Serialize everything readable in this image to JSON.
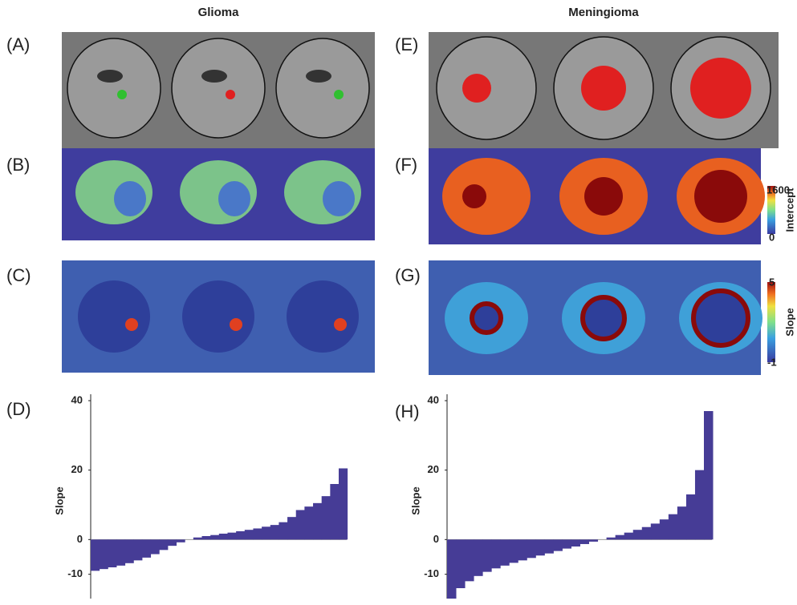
{
  "figure": {
    "columns": [
      "Glioma",
      "Meningioma"
    ],
    "panels": [
      "(A)",
      "(B)",
      "(C)",
      "(D)",
      "(E)",
      "(F)",
      "(G)",
      "(H)"
    ],
    "colorbars": [
      {
        "label": "Intercept",
        "max": "1600",
        "min": "0"
      },
      {
        "label": "Slope",
        "max": "5",
        "min": "-1"
      }
    ]
  },
  "chart_data": [
    {
      "type": "area",
      "ylabel": "Slope",
      "color": "#463c96",
      "x": [
        1,
        2,
        3,
        4,
        5,
        6,
        7,
        8,
        9,
        10,
        11,
        12,
        13,
        14,
        15,
        16,
        17,
        18,
        19,
        20,
        21,
        22,
        23,
        24,
        25,
        26,
        27,
        28,
        29,
        30
      ],
      "xlim": [
        1,
        30
      ],
      "values": [
        -9,
        -8.5,
        -8,
        -7.5,
        -6.8,
        -6,
        -5.2,
        -4.2,
        -3,
        -1.8,
        -0.8,
        0,
        0.6,
        1,
        1.3,
        1.7,
        2,
        2.4,
        2.8,
        3.2,
        3.7,
        4.2,
        5,
        6.5,
        8.5,
        9.5,
        10.5,
        12.5,
        16,
        20.5
      ],
      "ylim": [
        -17,
        40
      ],
      "yticks": [
        40,
        20,
        0,
        -10
      ]
    },
    {
      "type": "area",
      "ylabel": "Slope",
      "color": "#463c96",
      "x": [
        1,
        2,
        3,
        4,
        5,
        6,
        7,
        8,
        9,
        10,
        11,
        12,
        13,
        14,
        15,
        16,
        17,
        18,
        19,
        20,
        21,
        22,
        23,
        24,
        25,
        26,
        27,
        28,
        29,
        30
      ],
      "xlim": [
        1,
        30
      ],
      "values": [
        -17,
        -14,
        -12,
        -10.5,
        -9.3,
        -8.3,
        -7.5,
        -6.7,
        -6,
        -5.3,
        -4.6,
        -4,
        -3.3,
        -2.6,
        -2,
        -1.3,
        -0.6,
        0,
        0.6,
        1.3,
        2,
        2.8,
        3.6,
        4.6,
        5.8,
        7.3,
        9.5,
        13,
        20,
        37
      ],
      "ylim": [
        -17,
        40
      ],
      "yticks": [
        40,
        20,
        0,
        -10
      ]
    }
  ]
}
